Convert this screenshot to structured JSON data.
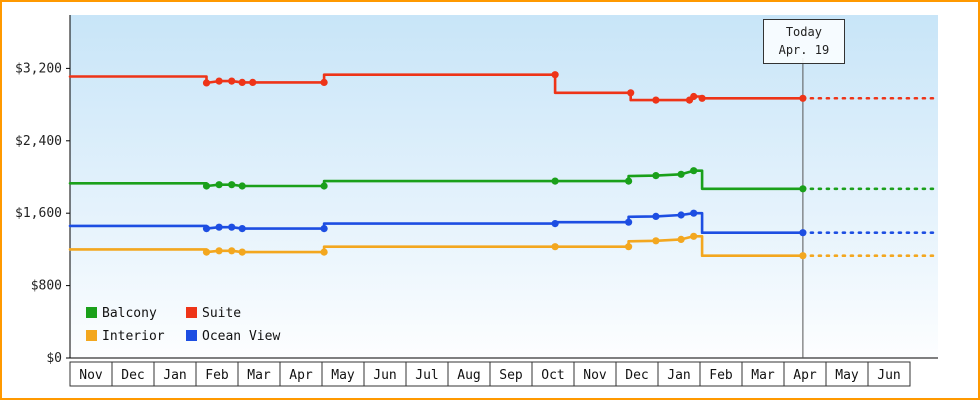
{
  "chart_data": {
    "type": "line",
    "title": "",
    "xlabel": "",
    "ylabel": "",
    "ylim": [
      0,
      3790
    ],
    "xlim_months": [
      0,
      20
    ],
    "grid": false,
    "legend_position": "bottom-left",
    "y_ticks": [
      {
        "value": 0,
        "label": "$0"
      },
      {
        "value": 800,
        "label": "$800"
      },
      {
        "value": 1600,
        "label": "$1,600"
      },
      {
        "value": 2400,
        "label": "$2,400"
      },
      {
        "value": 3200,
        "label": "$3,200"
      }
    ],
    "months": [
      "Nov",
      "Dec",
      "Jan",
      "Feb",
      "Mar",
      "Apr",
      "May",
      "Jun",
      "Jul",
      "Aug",
      "Sep",
      "Oct",
      "Nov",
      "Dec",
      "Jan",
      "Feb",
      "Mar",
      "Apr",
      "May",
      "Jun"
    ],
    "today": {
      "line1": "Today",
      "line2": "Apr. 19",
      "x": 17.45
    },
    "projection_end_x": 20.55,
    "colors": {
      "border": "#ff9900",
      "bg_top": "#c8e5f8",
      "bg_mid": "#e6f3fc",
      "bg_bottom": "#fdfeff",
      "axis": "#000000",
      "today_line": "#555555"
    },
    "legend": [
      {
        "id": "balcony",
        "name": "Balcony",
        "color": "#1aa01a"
      },
      {
        "id": "suite",
        "name": "Suite",
        "color": "#ee3418"
      },
      {
        "id": "interior",
        "name": "Interior",
        "color": "#f3a71f"
      },
      {
        "id": "ocean-view",
        "name": "Ocean View",
        "color": "#1d4ee2"
      }
    ],
    "series": [
      {
        "id": "suite",
        "name": "Suite",
        "color": "#ee3418",
        "points": [
          [
            0,
            3110
          ],
          [
            3.25,
            3110
          ],
          [
            3.25,
            3040,
            1
          ],
          [
            3.55,
            3060,
            1
          ],
          [
            3.85,
            3060,
            1
          ],
          [
            4.1,
            3045,
            1
          ],
          [
            4.35,
            3045,
            1
          ],
          [
            6.05,
            3045,
            1
          ],
          [
            6.05,
            3130
          ],
          [
            11.55,
            3130,
            1
          ],
          [
            11.55,
            2930
          ],
          [
            13.35,
            2930,
            1
          ],
          [
            13.35,
            2850
          ],
          [
            13.95,
            2850,
            1
          ],
          [
            14.75,
            2850,
            1
          ],
          [
            14.85,
            2890,
            1
          ],
          [
            15.05,
            2890
          ],
          [
            15.05,
            2870,
            1
          ],
          [
            17.45,
            2870,
            1
          ]
        ]
      },
      {
        "id": "balcony",
        "name": "Balcony",
        "color": "#1aa01a",
        "points": [
          [
            0,
            1930
          ],
          [
            3.25,
            1930
          ],
          [
            3.25,
            1900,
            1
          ],
          [
            3.55,
            1915,
            1
          ],
          [
            3.85,
            1915,
            1
          ],
          [
            4.1,
            1900,
            1
          ],
          [
            6.05,
            1900,
            1
          ],
          [
            6.05,
            1955
          ],
          [
            11.55,
            1955,
            1
          ],
          [
            13.3,
            1955,
            1
          ],
          [
            13.3,
            2010
          ],
          [
            13.95,
            2015,
            1
          ],
          [
            14.55,
            2030,
            1
          ],
          [
            14.85,
            2070,
            1
          ],
          [
            15.05,
            2070
          ],
          [
            15.05,
            1870
          ],
          [
            17.45,
            1870,
            1
          ]
        ]
      },
      {
        "id": "ocean-view",
        "name": "Ocean View",
        "color": "#1d4ee2",
        "points": [
          [
            0,
            1460
          ],
          [
            3.25,
            1460
          ],
          [
            3.25,
            1430,
            1
          ],
          [
            3.55,
            1445,
            1
          ],
          [
            3.85,
            1445,
            1
          ],
          [
            4.1,
            1430,
            1
          ],
          [
            6.05,
            1430,
            1
          ],
          [
            6.05,
            1485
          ],
          [
            11.55,
            1485,
            1
          ],
          [
            11.55,
            1500
          ],
          [
            13.3,
            1500,
            1
          ],
          [
            13.3,
            1560
          ],
          [
            13.95,
            1565,
            1
          ],
          [
            14.55,
            1580,
            1
          ],
          [
            14.85,
            1600,
            1
          ],
          [
            15.05,
            1600
          ],
          [
            15.05,
            1385
          ],
          [
            17.45,
            1385,
            1
          ]
        ]
      },
      {
        "id": "interior",
        "name": "Interior",
        "color": "#f3a71f",
        "points": [
          [
            0,
            1200
          ],
          [
            3.25,
            1200
          ],
          [
            3.25,
            1170,
            1
          ],
          [
            3.55,
            1185,
            1
          ],
          [
            3.85,
            1185,
            1
          ],
          [
            4.1,
            1170,
            1
          ],
          [
            6.05,
            1170,
            1
          ],
          [
            6.05,
            1230
          ],
          [
            11.55,
            1230,
            1
          ],
          [
            13.3,
            1230,
            1
          ],
          [
            13.3,
            1290
          ],
          [
            13.95,
            1295,
            1
          ],
          [
            14.55,
            1310,
            1
          ],
          [
            14.85,
            1345,
            1
          ],
          [
            15.05,
            1345
          ],
          [
            15.05,
            1130
          ],
          [
            17.45,
            1130,
            1
          ]
        ]
      }
    ]
  }
}
